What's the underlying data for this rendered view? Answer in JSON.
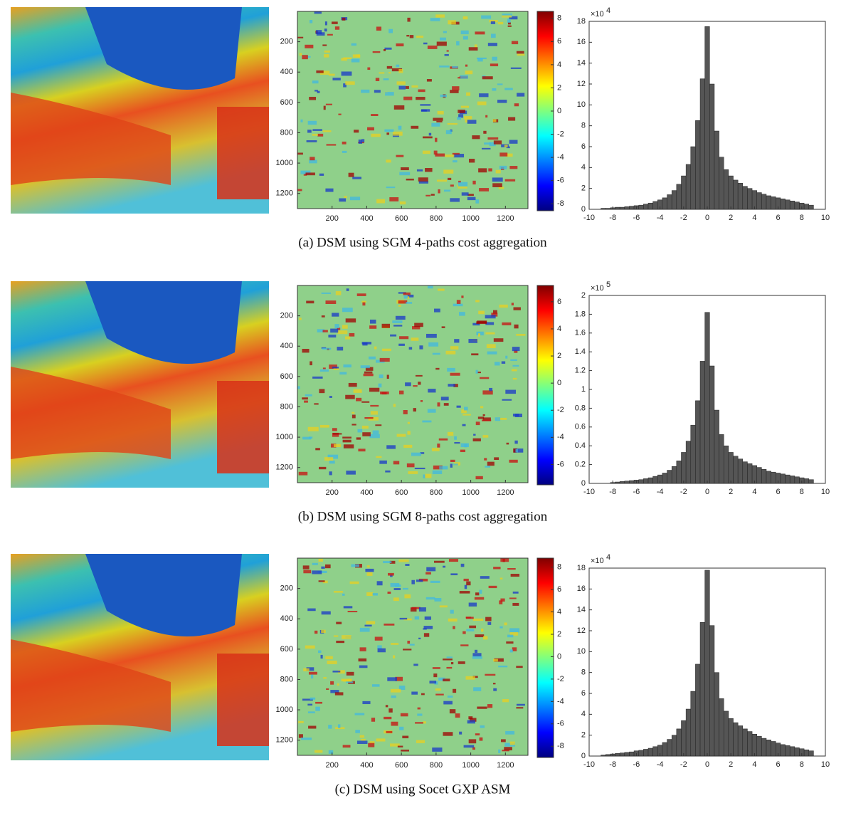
{
  "rows": [
    {
      "caption": "(a) DSM using SGM 4-paths cost aggregation",
      "error_map": {
        "xlim": [
          0,
          1330
        ],
        "ylim": [
          1300,
          0
        ],
        "xticks": [
          200,
          400,
          600,
          800,
          1000,
          1200
        ],
        "yticks": [
          200,
          400,
          600,
          800,
          1000,
          1200
        ],
        "colorbar": {
          "lim": [
            -8.6,
            8.6
          ],
          "ticks": [
            -8,
            -6,
            -4,
            -2,
            0,
            2,
            4,
            6,
            8
          ]
        }
      },
      "histogram": {
        "type": "bar",
        "color": "#555555",
        "bins": [
          -9,
          -8.6,
          -8.2,
          -7.8,
          -7.4,
          -7,
          -6.6,
          -6.2,
          -5.8,
          -5.4,
          -5,
          -4.6,
          -4.2,
          -3.8,
          -3.4,
          -3,
          -2.6,
          -2.2,
          -1.8,
          -1.4,
          -1,
          -0.6,
          -0.2,
          0.2,
          0.6,
          1,
          1.4,
          1.8,
          2.2,
          2.6,
          3,
          3.4,
          3.8,
          4.2,
          4.6,
          5,
          5.4,
          5.8,
          6.2,
          6.6,
          7,
          7.4,
          7.8,
          8.2,
          8.6,
          9
        ],
        "values": [
          0.1,
          0.1,
          0.15,
          0.2,
          0.2,
          0.25,
          0.3,
          0.35,
          0.4,
          0.5,
          0.6,
          0.75,
          0.9,
          1.1,
          1.4,
          1.8,
          2.4,
          3.2,
          4.3,
          6.0,
          8.5,
          12.5,
          17.5,
          12,
          7.5,
          5,
          3.8,
          3.2,
          2.8,
          2.5,
          2.2,
          2.0,
          1.8,
          1.6,
          1.45,
          1.3,
          1.2,
          1.1,
          1.0,
          0.9,
          0.8,
          0.7,
          0.6,
          0.5,
          0.4
        ],
        "xlim": [
          -10,
          10
        ],
        "xticks": [
          -10,
          -8,
          -6,
          -4,
          -2,
          0,
          2,
          4,
          6,
          8,
          10
        ],
        "ylim": [
          0,
          18
        ],
        "yticks": [
          0,
          2,
          4,
          6,
          8,
          10,
          12,
          14,
          16,
          18
        ],
        "scale_label": "×10",
        "scale_exponent": "4"
      }
    },
    {
      "caption": "(b) DSM using SGM 8-paths cost aggregation",
      "error_map": {
        "xlim": [
          0,
          1330
        ],
        "ylim": [
          1300,
          0
        ],
        "xticks": [
          200,
          400,
          600,
          800,
          1000,
          1200
        ],
        "yticks": [
          200,
          400,
          600,
          800,
          1000,
          1200
        ],
        "colorbar": {
          "lim": [
            -7.5,
            7.2
          ],
          "ticks": [
            -6,
            -4,
            -2,
            0,
            2,
            4,
            6
          ]
        }
      },
      "histogram": {
        "type": "bar",
        "color": "#555555",
        "bins": [
          -9,
          -8.6,
          -8.2,
          -7.8,
          -7.4,
          -7,
          -6.6,
          -6.2,
          -5.8,
          -5.4,
          -5,
          -4.6,
          -4.2,
          -3.8,
          -3.4,
          -3,
          -2.6,
          -2.2,
          -1.8,
          -1.4,
          -1,
          -0.6,
          -0.2,
          0.2,
          0.6,
          1,
          1.4,
          1.8,
          2.2,
          2.6,
          3,
          3.4,
          3.8,
          4.2,
          4.6,
          5,
          5.4,
          5.8,
          6.2,
          6.6,
          7,
          7.4,
          7.8,
          8.2,
          8.6,
          9
        ],
        "values": [
          0,
          0,
          0.01,
          0.015,
          0.02,
          0.025,
          0.03,
          0.035,
          0.04,
          0.05,
          0.06,
          0.075,
          0.09,
          0.11,
          0.14,
          0.18,
          0.24,
          0.33,
          0.45,
          0.62,
          0.88,
          1.3,
          1.82,
          1.25,
          0.78,
          0.52,
          0.4,
          0.33,
          0.29,
          0.26,
          0.23,
          0.21,
          0.19,
          0.17,
          0.15,
          0.13,
          0.12,
          0.11,
          0.1,
          0.09,
          0.08,
          0.07,
          0.06,
          0.05,
          0.04
        ],
        "xlim": [
          -10,
          10
        ],
        "xticks": [
          -10,
          -8,
          -6,
          -4,
          -2,
          0,
          2,
          4,
          6,
          8,
          10
        ],
        "ylim": [
          0,
          2
        ],
        "yticks": [
          0,
          0.2,
          0.4,
          0.6,
          0.8,
          1,
          1.2,
          1.4,
          1.6,
          1.8,
          2
        ],
        "scale_label": "×10",
        "scale_exponent": "5"
      }
    },
    {
      "caption": "(c) DSM using Socet GXP ASM",
      "error_map": {
        "xlim": [
          0,
          1330
        ],
        "ylim": [
          1300,
          0
        ],
        "xticks": [
          200,
          400,
          600,
          800,
          1000,
          1200
        ],
        "yticks": [
          200,
          400,
          600,
          800,
          1000,
          1200
        ],
        "colorbar": {
          "lim": [
            -9,
            8.8
          ],
          "ticks": [
            -8,
            -6,
            -4,
            -2,
            0,
            2,
            4,
            6,
            8
          ]
        }
      },
      "histogram": {
        "type": "bar",
        "color": "#555555",
        "bins": [
          -9,
          -8.6,
          -8.2,
          -7.8,
          -7.4,
          -7,
          -6.6,
          -6.2,
          -5.8,
          -5.4,
          -5,
          -4.6,
          -4.2,
          -3.8,
          -3.4,
          -3,
          -2.6,
          -2.2,
          -1.8,
          -1.4,
          -1,
          -0.6,
          -0.2,
          0.2,
          0.6,
          1,
          1.4,
          1.8,
          2.2,
          2.6,
          3,
          3.4,
          3.8,
          4.2,
          4.6,
          5,
          5.4,
          5.8,
          6.2,
          6.6,
          7,
          7.4,
          7.8,
          8.2,
          8.6,
          9
        ],
        "values": [
          0.1,
          0.15,
          0.2,
          0.25,
          0.3,
          0.35,
          0.4,
          0.5,
          0.55,
          0.65,
          0.75,
          0.9,
          1.05,
          1.3,
          1.6,
          2.0,
          2.6,
          3.4,
          4.5,
          6.2,
          8.8,
          12.8,
          17.8,
          12.5,
          8,
          5.5,
          4.3,
          3.6,
          3.2,
          2.9,
          2.6,
          2.35,
          2.1,
          1.9,
          1.7,
          1.55,
          1.4,
          1.25,
          1.1,
          1.0,
          0.9,
          0.8,
          0.7,
          0.6,
          0.5
        ],
        "xlim": [
          -10,
          10
        ],
        "xticks": [
          -10,
          -8,
          -6,
          -4,
          -2,
          0,
          2,
          4,
          6,
          8,
          10
        ],
        "ylim": [
          0,
          18
        ],
        "yticks": [
          0,
          2,
          4,
          6,
          8,
          10,
          12,
          14,
          16,
          18
        ],
        "scale_label": "×10",
        "scale_exponent": "4"
      }
    }
  ]
}
